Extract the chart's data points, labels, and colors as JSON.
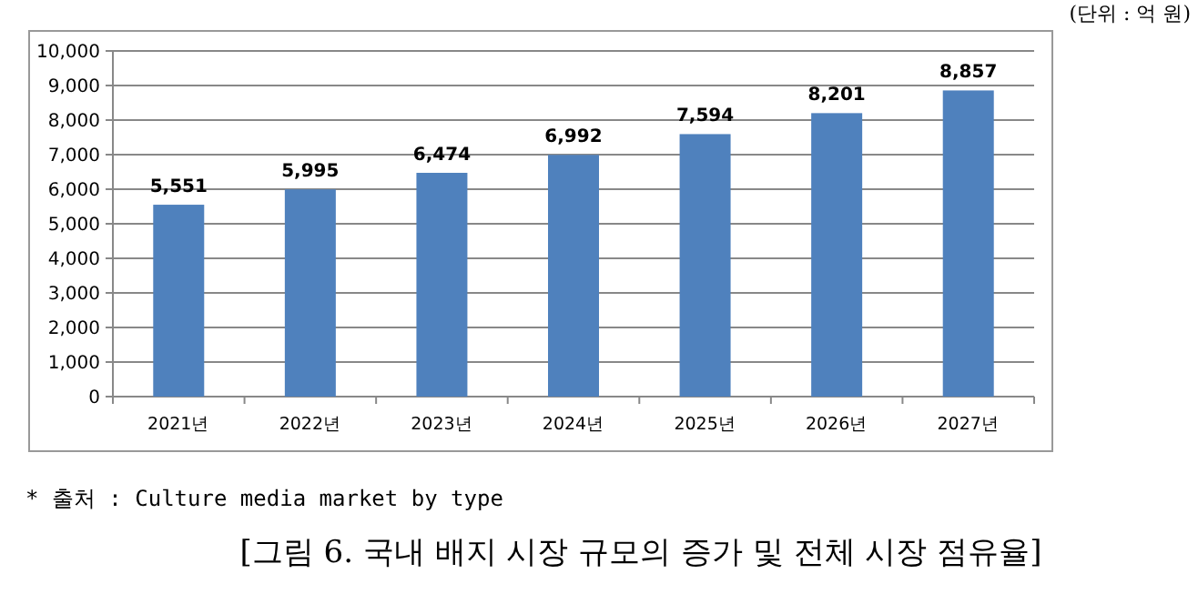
{
  "chart_data": {
    "type": "bar",
    "title": "[그림 6. 국내 배지 시장 규모의 증가 및 전체 시장 점유율]",
    "categories": [
      "2021년",
      "2022년",
      "2023년",
      "2024년",
      "2025년",
      "2026년",
      "2027년"
    ],
    "values": [
      5551,
      5995,
      6474,
      6992,
      7594,
      8201,
      8857
    ],
    "value_labels": [
      "5,551",
      "5,995",
      "6,474",
      "6,992",
      "7,594",
      "8,201",
      "8,857"
    ],
    "color": "#4f81bd",
    "ylim": [
      0,
      10000
    ],
    "yticks": [
      0,
      {
        "value": 1000,
        "label": "1,000"
      },
      {
        "value": 2000,
        "label": "2,000"
      },
      {
        "value": 3000,
        "label": "3,000"
      },
      {
        "value": 4000,
        "label": "4,000"
      },
      {
        "value": 5000,
        "label": "5,000"
      },
      {
        "value": 6000,
        "label": "6,000"
      },
      {
        "value": 7000,
        "label": "7,000"
      },
      {
        "value": 8000,
        "label": "8,000"
      },
      {
        "value": 9000,
        "label": "9,000"
      },
      {
        "value": 10000,
        "label": "10,000"
      }
    ],
    "grid": "y",
    "annotations": [
      "(단위 : 억 원)",
      "* 출처 : Culture media market by type"
    ]
  }
}
